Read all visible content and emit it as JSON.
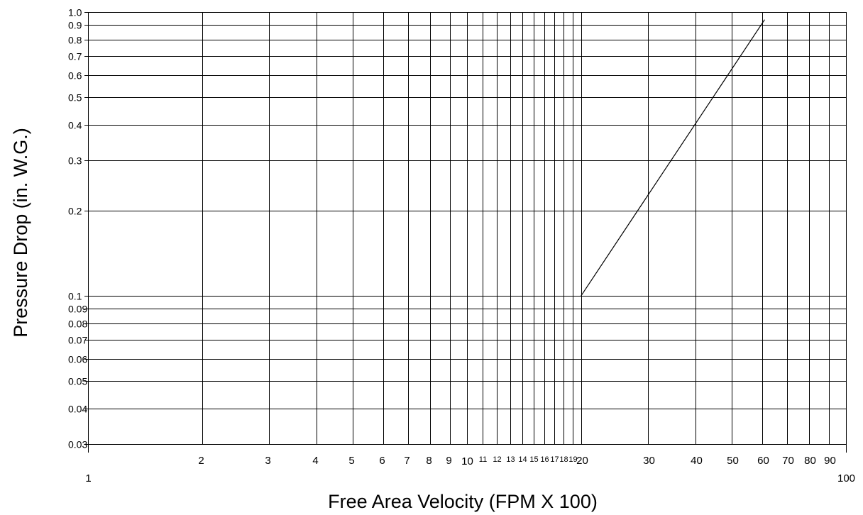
{
  "chart_data": {
    "type": "line",
    "title": "",
    "xlabel": "Free Area Velocity (FPM X 100)",
    "ylabel": "Pressure Drop (in. W.G.)",
    "x_scale": "log",
    "y_scale": "log",
    "xlim": [
      1,
      100
    ],
    "ylim": [
      0.03,
      1.0
    ],
    "grid": true,
    "x_ticks": [
      {
        "value": 1,
        "label": "1",
        "size": "major"
      },
      {
        "value": 2,
        "label": "2",
        "size": "normal"
      },
      {
        "value": 3,
        "label": "3",
        "size": "normal"
      },
      {
        "value": 4,
        "label": "4",
        "size": "normal"
      },
      {
        "value": 5,
        "label": "5",
        "size": "normal"
      },
      {
        "value": 6,
        "label": "6",
        "size": "normal"
      },
      {
        "value": 7,
        "label": "7",
        "size": "normal"
      },
      {
        "value": 8,
        "label": "8",
        "size": "normal"
      },
      {
        "value": 9,
        "label": "9",
        "size": "normal"
      },
      {
        "value": 10,
        "label": "10",
        "size": "major"
      },
      {
        "value": 11,
        "label": "11",
        "size": "small"
      },
      {
        "value": 12,
        "label": "12",
        "size": "small"
      },
      {
        "value": 13,
        "label": "13",
        "size": "small"
      },
      {
        "value": 14,
        "label": "14",
        "size": "small"
      },
      {
        "value": 15,
        "label": "15",
        "size": "small"
      },
      {
        "value": 16,
        "label": "16",
        "size": "small"
      },
      {
        "value": 17,
        "label": "17",
        "size": "small"
      },
      {
        "value": 18,
        "label": "18",
        "size": "small"
      },
      {
        "value": 19,
        "label": "19",
        "size": "small"
      },
      {
        "value": 20,
        "label": "20",
        "size": "normal"
      },
      {
        "value": 30,
        "label": "30",
        "size": "normal"
      },
      {
        "value": 40,
        "label": "40",
        "size": "normal"
      },
      {
        "value": 50,
        "label": "50",
        "size": "normal"
      },
      {
        "value": 60,
        "label": "60",
        "size": "normal"
      },
      {
        "value": 70,
        "label": "70",
        "size": "normal"
      },
      {
        "value": 80,
        "label": "80",
        "size": "normal"
      },
      {
        "value": 90,
        "label": "90",
        "size": "normal"
      },
      {
        "value": 100,
        "label": "100",
        "size": "major"
      }
    ],
    "y_ticks": [
      {
        "value": 0.03,
        "label": "0.03"
      },
      {
        "value": 0.04,
        "label": "0.04"
      },
      {
        "value": 0.05,
        "label": "0.05"
      },
      {
        "value": 0.06,
        "label": "0.06"
      },
      {
        "value": 0.07,
        "label": "0.07"
      },
      {
        "value": 0.08,
        "label": "0.08"
      },
      {
        "value": 0.09,
        "label": "0.09"
      },
      {
        "value": 0.1,
        "label": "0.1"
      },
      {
        "value": 0.2,
        "label": "0.2"
      },
      {
        "value": 0.3,
        "label": "0.3"
      },
      {
        "value": 0.4,
        "label": "0.4"
      },
      {
        "value": 0.5,
        "label": "0.5"
      },
      {
        "value": 0.6,
        "label": "0.6"
      },
      {
        "value": 0.7,
        "label": "0.7"
      },
      {
        "value": 0.8,
        "label": "0.8"
      },
      {
        "value": 0.9,
        "label": "0.9"
      },
      {
        "value": 1.0,
        "label": "1.0"
      }
    ],
    "series": [
      {
        "points": [
          {
            "x": 20,
            "y": 0.1
          },
          {
            "x": 61,
            "y": 0.94
          }
        ]
      }
    ],
    "line_color": "#000000"
  }
}
